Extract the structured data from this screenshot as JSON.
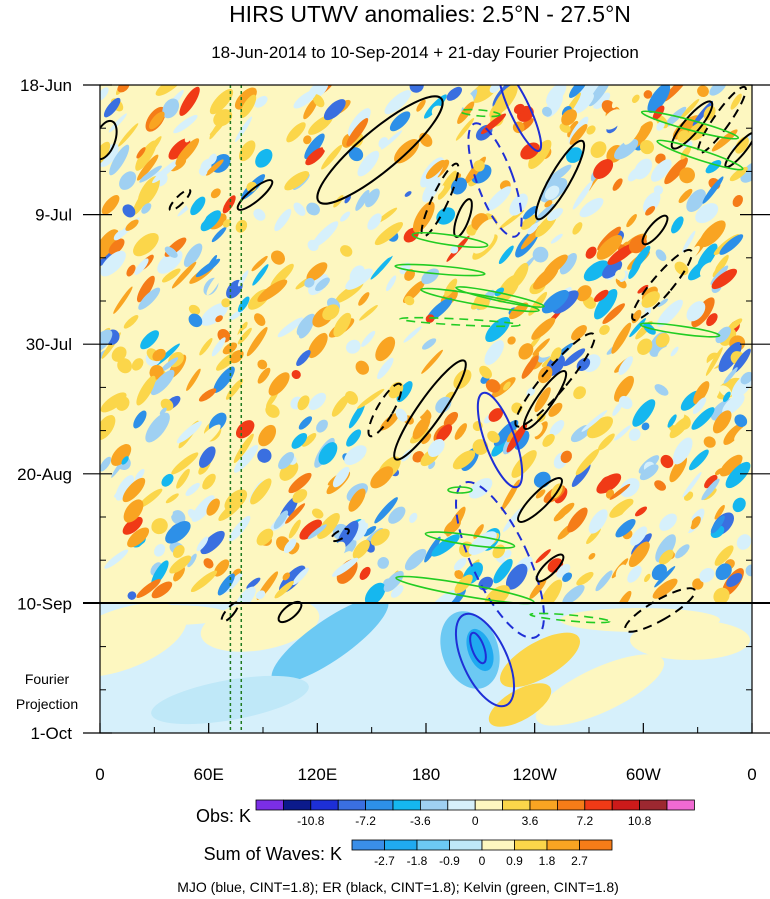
{
  "chart_data": {
    "type": "heatmap",
    "title": "HIRS UTWV anomalies: 2.5°N - 27.5°N",
    "subtitle": "18-Jun-2014 to 10-Sep-2014 + 21-day Fourier Projection",
    "y_ticks": [
      "18-Jun",
      "9-Jul",
      "30-Jul",
      "20-Aug",
      "10-Sep",
      "1-Oct"
    ],
    "x_ticks": [
      "0",
      "60E",
      "120E",
      "180",
      "120W",
      "60W",
      "0"
    ],
    "xlim": [
      0,
      360
    ],
    "ylim_days": [
      0,
      105
    ],
    "observation_end_label": "10-Sep",
    "projection_label": [
      "Fourier",
      "Projection"
    ],
    "obs_colorbar": {
      "label": "Obs: K",
      "tick_labels": [
        "-10.8",
        "-7.2",
        "-3.6",
        "0",
        "3.6",
        "7.2",
        "10.8"
      ],
      "colors": [
        "#7b2ee6",
        "#0b1a8c",
        "#1d2fd6",
        "#3a6fe0",
        "#2d90e8",
        "#15b7ef",
        "#9fd0f2",
        "#d6f0fb",
        "#fdf7c0",
        "#fbd64a",
        "#f9a422",
        "#f57c18",
        "#f03a16",
        "#cc1a1a",
        "#9c2830",
        "#f06ad2"
      ]
    },
    "waves_colorbar": {
      "label": "Sum of Waves: K",
      "tick_labels": [
        "-2.7",
        "-1.8",
        "-0.9",
        "0",
        "0.9",
        "1.8",
        "2.7"
      ],
      "colors": [
        "#3a8ee8",
        "#20aaf0",
        "#6cc9f3",
        "#bfe8f8",
        "#fdf7c0",
        "#fbd64a",
        "#f9a422",
        "#f57c18"
      ]
    },
    "wave_contours": [
      {
        "name": "MJO",
        "color": "#1f2fd6",
        "cint": 1.8
      },
      {
        "name": "ER",
        "color": "#000000",
        "cint": 1.8
      },
      {
        "name": "Kelvin",
        "color": "#22cc22",
        "cint": 1.8
      }
    ],
    "dashed_reference_lines_lon": [
      72,
      78
    ]
  },
  "footer": "MJO (blue, CINT=1.8); ER (black, CINT=1.8); Kelvin (green, CINT=1.8)"
}
